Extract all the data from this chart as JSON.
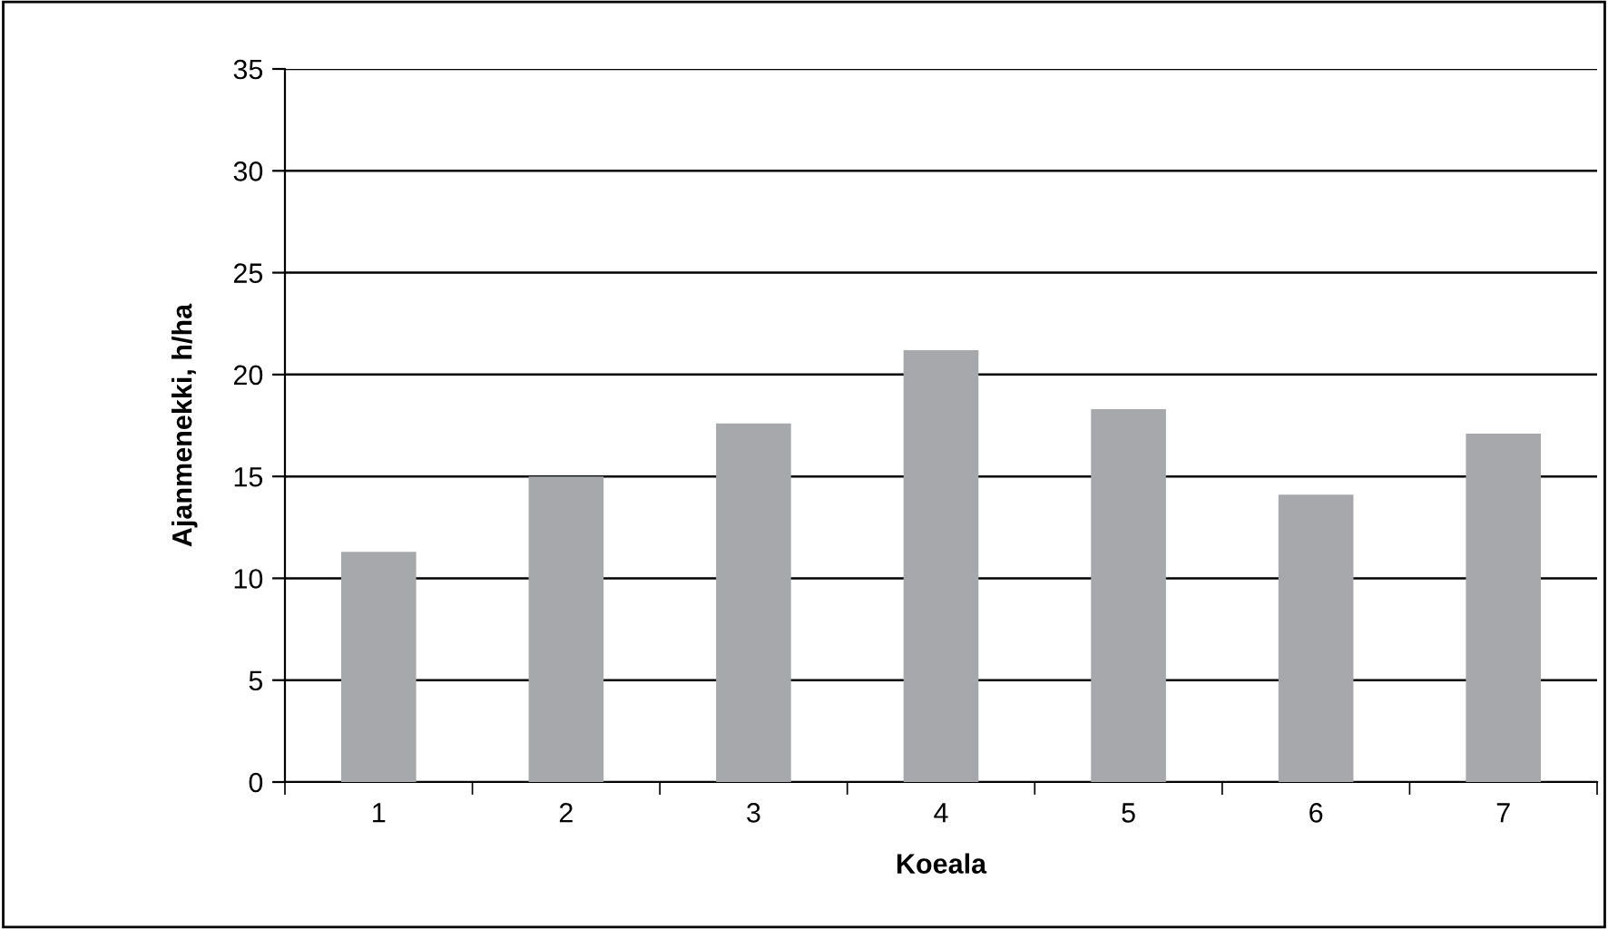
{
  "chart_data": {
    "type": "bar",
    "xlabel": "Koeala",
    "ylabel": "Ajanmenekki, h/ha",
    "categories": [
      "1",
      "2",
      "3",
      "4",
      "5",
      "6",
      "7"
    ],
    "values": [
      11.3,
      15.0,
      17.6,
      21.2,
      18.3,
      14.1,
      17.1
    ],
    "color": "#a7a8ac",
    "ylim": [
      0,
      35
    ],
    "yticks": [
      0,
      5,
      10,
      15,
      20,
      25,
      30,
      35
    ],
    "grid": "y"
  }
}
